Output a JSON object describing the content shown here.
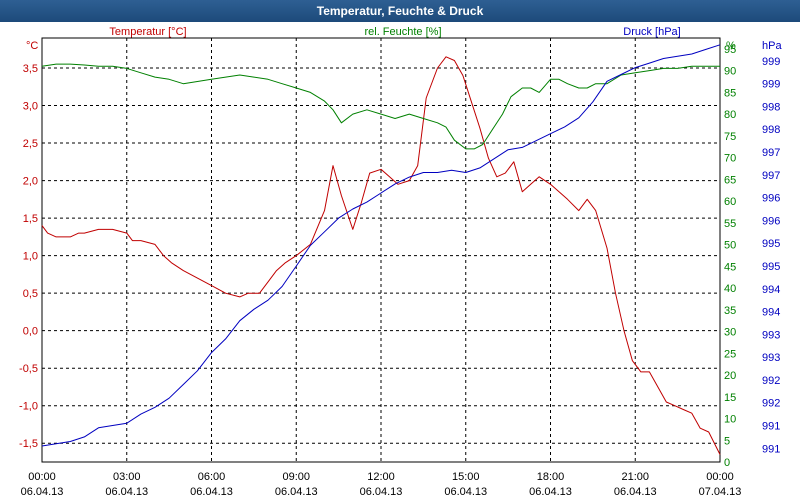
{
  "window": {
    "title": "Temperatur, Feuchte & Druck"
  },
  "colors": {
    "temperature": "#c00000",
    "humidity": "#008000",
    "pressure": "#0000c0",
    "grid": "#000000",
    "title_bar": "#245488"
  },
  "chart_data": {
    "type": "line",
    "title": "Temperatur, Feuchte & Druck",
    "x_ticks": [
      {
        "time": "00:00",
        "date": "06.04.13"
      },
      {
        "time": "03:00",
        "date": "06.04.13"
      },
      {
        "time": "06:00",
        "date": "06.04.13"
      },
      {
        "time": "09:00",
        "date": "06.04.13"
      },
      {
        "time": "12:00",
        "date": "06.04.13"
      },
      {
        "time": "15:00",
        "date": "06.04.13"
      },
      {
        "time": "18:00",
        "date": "06.04.13"
      },
      {
        "time": "21:00",
        "date": "06.04.13"
      },
      {
        "time": "00:00",
        "date": "07.04.13"
      }
    ],
    "x_range_hours": [
      0,
      24
    ],
    "axes": {
      "temperature": {
        "unit": "°C",
        "legend": "Temperatur [°C]",
        "range": [
          -1.75,
          3.9
        ],
        "ticks": [
          "3,5",
          "3,0",
          "2,5",
          "2,0",
          "1,5",
          "1,0",
          "0,5",
          "0,0",
          "-0,5",
          "-1,0",
          "-1,5"
        ],
        "tick_values": [
          3.5,
          3.0,
          2.5,
          2.0,
          1.5,
          1.0,
          0.5,
          0.0,
          -0.5,
          -1.0,
          -1.5
        ]
      },
      "humidity": {
        "unit": "%",
        "legend": "rel. Feuchte [%]",
        "range": [
          0,
          97.5
        ],
        "ticks": [
          "95",
          "90",
          "85",
          "80",
          "75",
          "70",
          "65",
          "60",
          "55",
          "50",
          "45",
          "40",
          "35",
          "30",
          "25",
          "20",
          "15",
          "10",
          "5",
          "0"
        ],
        "tick_values": [
          95,
          90,
          85,
          80,
          75,
          70,
          65,
          60,
          55,
          50,
          45,
          40,
          35,
          30,
          25,
          20,
          15,
          10,
          5,
          0
        ]
      },
      "pressure": {
        "unit": "hPa",
        "legend": "Druck [hPa]",
        "range": [
          990.6,
          999.9
        ],
        "ticks": [
          "999",
          "999",
          "998",
          "998",
          "997",
          "997",
          "996",
          "996",
          "995",
          "995",
          "994",
          "994",
          "993",
          "993",
          "992",
          "992",
          "991",
          "991"
        ],
        "tick_values": [
          999.4,
          998.9,
          998.4,
          997.9,
          997.4,
          996.9,
          996.4,
          995.9,
          995.4,
          994.9,
          994.4,
          993.9,
          993.4,
          992.9,
          992.4,
          991.9,
          991.4,
          990.9
        ]
      }
    },
    "series": [
      {
        "name": "Temperatur [°C]",
        "axis": "temperature",
        "color": "#c00000",
        "x": [
          0,
          0.2,
          0.5,
          1,
          1.3,
          1.5,
          2,
          2.5,
          3,
          3.2,
          3.5,
          4,
          4.3,
          4.6,
          5,
          5.5,
          6,
          6.5,
          7,
          7.3,
          7.7,
          8,
          8.3,
          8.6,
          9,
          9.5,
          10,
          10.3,
          10.6,
          11,
          11.3,
          11.6,
          12,
          12.3,
          12.6,
          13,
          13.3,
          13.6,
          14,
          14.3,
          14.6,
          14.9,
          15.2,
          15.5,
          15.8,
          16.1,
          16.4,
          16.7,
          17,
          17.3,
          17.6,
          18,
          18.3,
          18.6,
          19,
          19.3,
          19.6,
          20,
          20.3,
          20.6,
          20.9,
          21.2,
          21.5,
          21.8,
          22.1,
          22.4,
          22.7,
          23,
          23.3,
          23.6,
          24
        ],
        "values": [
          1.4,
          1.3,
          1.25,
          1.25,
          1.3,
          1.3,
          1.35,
          1.35,
          1.3,
          1.2,
          1.2,
          1.15,
          1.0,
          0.9,
          0.8,
          0.7,
          0.6,
          0.5,
          0.45,
          0.5,
          0.5,
          0.65,
          0.8,
          0.9,
          1.0,
          1.15,
          1.6,
          2.2,
          1.8,
          1.35,
          1.7,
          2.1,
          2.15,
          2.05,
          1.95,
          2.0,
          2.2,
          3.1,
          3.5,
          3.65,
          3.6,
          3.4,
          3.05,
          2.7,
          2.3,
          2.05,
          2.1,
          2.25,
          1.85,
          1.95,
          2.05,
          1.95,
          1.85,
          1.75,
          1.6,
          1.75,
          1.6,
          1.1,
          0.5,
          0.0,
          -0.4,
          -0.55,
          -0.55,
          -0.75,
          -0.95,
          -1.0,
          -1.05,
          -1.1,
          -1.3,
          -1.35,
          -1.65
        ]
      },
      {
        "name": "rel. Feuchte [%]",
        "axis": "humidity",
        "color": "#008000",
        "x": [
          0,
          0.5,
          1,
          1.5,
          2,
          2.5,
          3,
          3.5,
          4,
          4.5,
          5,
          5.5,
          6,
          6.5,
          7,
          7.5,
          8,
          8.5,
          9,
          9.5,
          10,
          10.3,
          10.6,
          11,
          11.5,
          12,
          12.5,
          13,
          13.5,
          14,
          14.3,
          14.6,
          15,
          15.3,
          15.6,
          16,
          16.3,
          16.6,
          17,
          17.3,
          17.6,
          18,
          18.3,
          18.6,
          19,
          19.3,
          19.6,
          20,
          20.5,
          21,
          21.5,
          22,
          22.5,
          23,
          23.5,
          24
        ],
        "values": [
          91,
          91.5,
          91.5,
          91.3,
          91,
          91,
          90.5,
          89.5,
          88.5,
          88,
          87,
          87.5,
          88,
          88.5,
          89,
          88.5,
          88,
          87,
          86,
          85,
          83,
          81,
          78,
          80,
          81,
          80,
          79,
          80,
          79,
          78,
          77,
          74,
          72,
          72,
          73,
          77,
          80,
          84,
          86,
          86,
          85,
          88,
          88,
          87,
          86,
          86,
          87,
          87,
          89,
          89.5,
          90,
          90.5,
          90.5,
          91,
          91,
          91
        ]
      },
      {
        "name": "Druck [hPa]",
        "axis": "pressure",
        "color": "#0000c0",
        "x": [
          0,
          0.5,
          1,
          1.5,
          2,
          2.5,
          3,
          3.5,
          4,
          4.5,
          5,
          5.5,
          6,
          6.5,
          7,
          7.5,
          8,
          8.5,
          9,
          9.5,
          10,
          10.5,
          11,
          11.5,
          12,
          12.5,
          13,
          13.5,
          14,
          14.5,
          15,
          15.5,
          16,
          16.5,
          17,
          17.5,
          18,
          18.5,
          19,
          19.5,
          20,
          20.5,
          21,
          21.5,
          22,
          22.5,
          23,
          23.5,
          24
        ],
        "values": [
          990.95,
          991.0,
          991.05,
          991.15,
          991.35,
          991.4,
          991.45,
          991.65,
          991.8,
          992.0,
          992.3,
          992.6,
          993.0,
          993.3,
          993.7,
          993.95,
          994.15,
          994.45,
          994.9,
          995.35,
          995.65,
          995.95,
          996.15,
          996.3,
          996.5,
          996.7,
          996.85,
          996.95,
          996.95,
          997.0,
          996.95,
          997.05,
          997.25,
          997.45,
          997.5,
          997.65,
          997.8,
          997.95,
          998.15,
          998.5,
          998.95,
          999.1,
          999.25,
          999.35,
          999.45,
          999.5,
          999.55,
          999.65,
          999.75
        ]
      }
    ]
  }
}
